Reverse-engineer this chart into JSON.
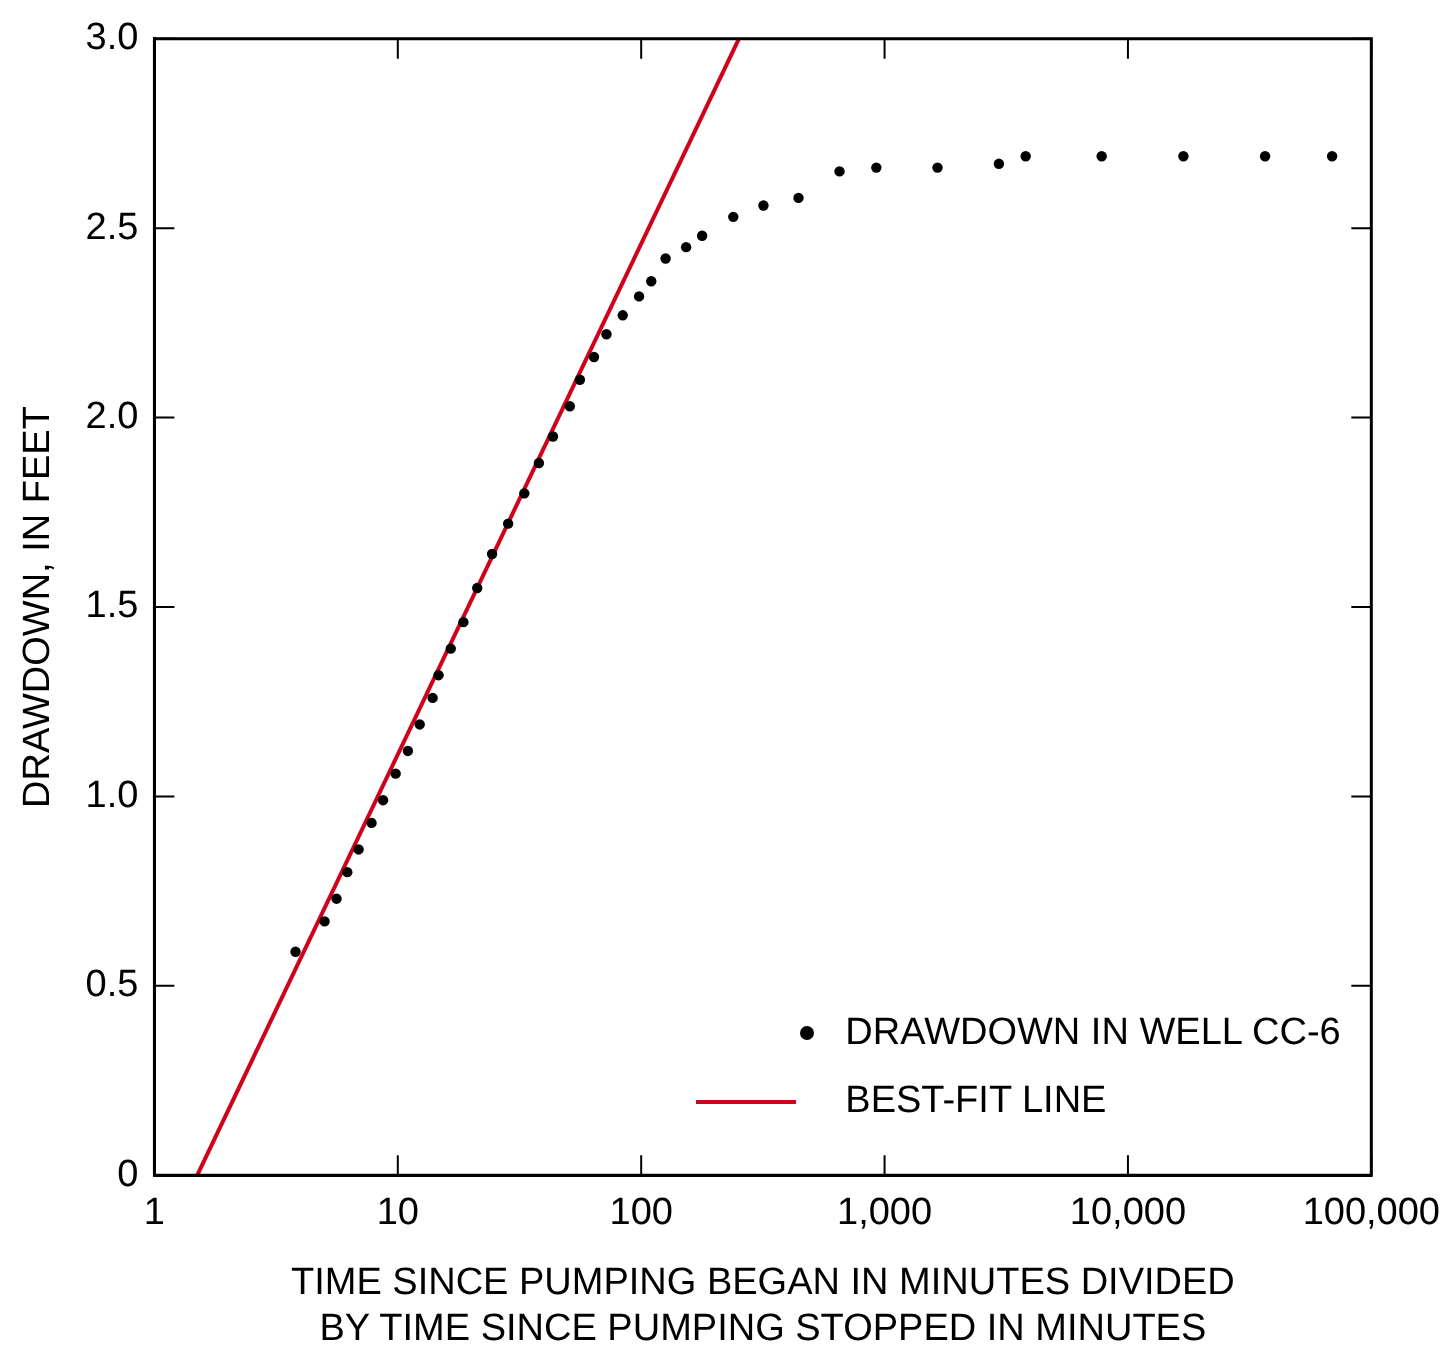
{
  "chart_data": {
    "type": "scatter",
    "xlabel": "TIME SINCE PUMPING BEGAN IN MINUTES DIVIDED BY TIME SINCE PUMPING STOPPED IN MINUTES",
    "ylabel": "DRAWDOWN, IN FEET",
    "log": "x",
    "xlim": [
      1,
      100000
    ],
    "xticks": [
      1,
      10,
      100,
      {
        "value": 1000,
        "label": "1,000"
      },
      {
        "value": 10000,
        "label": "10,000"
      },
      {
        "value": 100000,
        "label": "100,000"
      }
    ],
    "ylim": [
      0,
      3.0
    ],
    "yticks": [
      {
        "value": 0,
        "label": "0"
      },
      0.5,
      {
        "value": 1,
        "label": "1.0"
      },
      1.5,
      {
        "value": 2,
        "label": "2.0"
      },
      2.5,
      {
        "value": 3,
        "label": "3.0"
      }
    ],
    "grid": false,
    "legend": "bottom right",
    "series": [
      {
        "name": "DRAWDOWN IN WELL CC-6",
        "type": "scatter",
        "marker": "circle",
        "color": "#000000",
        "x": [
          3.8,
          5.0,
          5.6,
          6.2,
          6.9,
          7.8,
          8.7,
          9.8,
          11.0,
          12.3,
          13.9,
          14.7,
          16.5,
          18.6,
          21.2,
          24.4,
          28.4,
          33.1,
          38.0,
          43.4,
          50.9,
          56,
          64,
          72,
          84,
          98,
          110,
          126,
          153,
          178,
          239,
          318,
          443,
          653,
          925,
          1650,
          2950,
          3800,
          7800,
          16900,
          36600,
          69000
        ],
        "values": [
          0.59,
          0.67,
          0.73,
          0.8,
          0.86,
          0.93,
          0.99,
          1.06,
          1.12,
          1.19,
          1.26,
          1.32,
          1.39,
          1.46,
          1.55,
          1.64,
          1.72,
          1.8,
          1.88,
          1.95,
          2.03,
          2.1,
          2.16,
          2.22,
          2.27,
          2.32,
          2.36,
          2.42,
          2.45,
          2.48,
          2.53,
          2.56,
          2.58,
          2.65,
          2.66,
          2.66,
          2.67,
          2.69,
          2.69,
          2.69,
          2.69,
          2.69
        ]
      },
      {
        "name": "BEST-FIT LINE",
        "type": "line",
        "color": "#d0021b",
        "x": [
          1.5,
          252
        ],
        "values": [
          0,
          3.0
        ]
      }
    ]
  }
}
